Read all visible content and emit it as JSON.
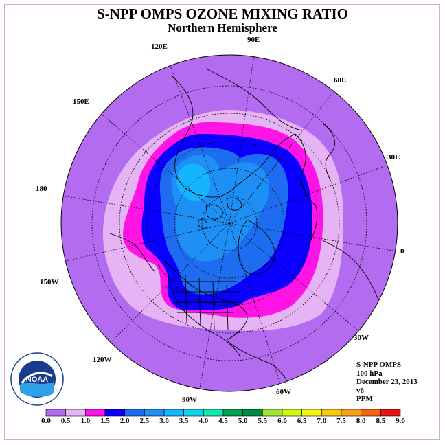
{
  "title": "S-NPP OMPS OZONE MIXING RATIO",
  "subtitle": "Northern Hemisphere",
  "longitude_labels": [
    "90E",
    "60E",
    "30E",
    "0",
    "30W",
    "60W",
    "90W",
    "120W",
    "150W",
    "180",
    "150E",
    "120E"
  ],
  "info": {
    "instrument": "S-NPP OMPS",
    "level": "100 hPa",
    "date": "December 23, 2013",
    "version": "v6",
    "units": "PPM"
  },
  "logo": {
    "center_text": "NOAA"
  },
  "colorbar": {
    "ticks": [
      "0.0",
      "0.5",
      "1.0",
      "1.5",
      "2.0",
      "2.5",
      "3.0",
      "3.5",
      "4.0",
      "4.5",
      "5.0",
      "5.5",
      "6.0",
      "6.5",
      "7.0",
      "7.5",
      "8.0",
      "8.5",
      "9.0"
    ],
    "colors": [
      "#b36bf0",
      "#e6b3f5",
      "#ff14e6",
      "#0a00ff",
      "#1e6cf0",
      "#1e90f5",
      "#14b4ff",
      "#14d2e6",
      "#14e6b4",
      "#00a050",
      "#008c3c",
      "#a0e632",
      "#d2f514",
      "#f5f514",
      "#f5c814",
      "#f5a014",
      "#f56414",
      "#e61414",
      "#8c5a3c"
    ]
  },
  "map_fields": {
    "background_level": "0.0-0.5",
    "contours": [
      {
        "range": "0.5-1.0",
        "color": "#e6b3f5"
      },
      {
        "range": "1.0-1.5",
        "color": "#ff14e6"
      },
      {
        "range": "1.5-2.0",
        "color": "#0a00ff"
      },
      {
        "range": "2.0-2.5",
        "color": "#1e6cf0"
      },
      {
        "range": "2.5-3.0",
        "color": "#1e90f5"
      },
      {
        "range": "3.0-3.5",
        "color": "#14b4ff"
      }
    ]
  }
}
